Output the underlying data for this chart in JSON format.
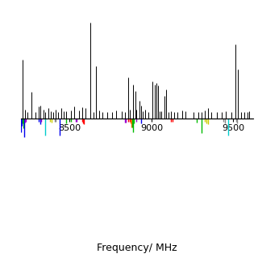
{
  "freq_min": 8200,
  "freq_max": 9620,
  "xlabel": "Frequency/ MHz",
  "background": "#ffffff",
  "upper_lines": [
    {
      "freq": 8213,
      "intensity": 0.62
    },
    {
      "freq": 8225,
      "intensity": 0.1
    },
    {
      "freq": 8240,
      "intensity": 0.07
    },
    {
      "freq": 8268,
      "intensity": 0.28
    },
    {
      "freq": 8290,
      "intensity": 0.07
    },
    {
      "freq": 8310,
      "intensity": 0.13
    },
    {
      "freq": 8322,
      "intensity": 0.14
    },
    {
      "freq": 8338,
      "intensity": 0.1
    },
    {
      "freq": 8352,
      "intensity": 0.07
    },
    {
      "freq": 8368,
      "intensity": 0.11
    },
    {
      "freq": 8382,
      "intensity": 0.08
    },
    {
      "freq": 8398,
      "intensity": 0.07
    },
    {
      "freq": 8412,
      "intensity": 0.1
    },
    {
      "freq": 8428,
      "intensity": 0.07
    },
    {
      "freq": 8448,
      "intensity": 0.11
    },
    {
      "freq": 8462,
      "intensity": 0.08
    },
    {
      "freq": 8478,
      "intensity": 0.08
    },
    {
      "freq": 8508,
      "intensity": 0.09
    },
    {
      "freq": 8528,
      "intensity": 0.13
    },
    {
      "freq": 8558,
      "intensity": 0.09
    },
    {
      "freq": 8575,
      "intensity": 0.12
    },
    {
      "freq": 8598,
      "intensity": 0.11
    },
    {
      "freq": 8628,
      "intensity": 1.0
    },
    {
      "freq": 8645,
      "intensity": 0.07
    },
    {
      "freq": 8660,
      "intensity": 0.55
    },
    {
      "freq": 8678,
      "intensity": 0.09
    },
    {
      "freq": 8698,
      "intensity": 0.07
    },
    {
      "freq": 8728,
      "intensity": 0.07
    },
    {
      "freq": 8758,
      "intensity": 0.07
    },
    {
      "freq": 8785,
      "intensity": 0.09
    },
    {
      "freq": 8818,
      "intensity": 0.08
    },
    {
      "freq": 8838,
      "intensity": 0.07
    },
    {
      "freq": 8858,
      "intensity": 0.43
    },
    {
      "freq": 8868,
      "intensity": 0.1
    },
    {
      "freq": 8888,
      "intensity": 0.36
    },
    {
      "freq": 8902,
      "intensity": 0.29
    },
    {
      "freq": 8908,
      "intensity": 0.1
    },
    {
      "freq": 8928,
      "intensity": 0.19
    },
    {
      "freq": 8938,
      "intensity": 0.14
    },
    {
      "freq": 8948,
      "intensity": 0.08
    },
    {
      "freq": 8962,
      "intensity": 0.1
    },
    {
      "freq": 8982,
      "intensity": 0.07
    },
    {
      "freq": 9008,
      "intensity": 0.39
    },
    {
      "freq": 9018,
      "intensity": 0.36
    },
    {
      "freq": 9028,
      "intensity": 0.37
    },
    {
      "freq": 9038,
      "intensity": 0.35
    },
    {
      "freq": 9048,
      "intensity": 0.08
    },
    {
      "freq": 9058,
      "intensity": 0.08
    },
    {
      "freq": 9078,
      "intensity": 0.24
    },
    {
      "freq": 9088,
      "intensity": 0.31
    },
    {
      "freq": 9102,
      "intensity": 0.07
    },
    {
      "freq": 9118,
      "intensity": 0.08
    },
    {
      "freq": 9138,
      "intensity": 0.07
    },
    {
      "freq": 9158,
      "intensity": 0.07
    },
    {
      "freq": 9188,
      "intensity": 0.09
    },
    {
      "freq": 9208,
      "intensity": 0.08
    },
    {
      "freq": 9258,
      "intensity": 0.07
    },
    {
      "freq": 9288,
      "intensity": 0.07
    },
    {
      "freq": 9308,
      "intensity": 0.07
    },
    {
      "freq": 9328,
      "intensity": 0.09
    },
    {
      "freq": 9348,
      "intensity": 0.11
    },
    {
      "freq": 9368,
      "intensity": 0.07
    },
    {
      "freq": 9398,
      "intensity": 0.07
    },
    {
      "freq": 9428,
      "intensity": 0.07
    },
    {
      "freq": 9452,
      "intensity": 0.08
    },
    {
      "freq": 9488,
      "intensity": 0.07
    },
    {
      "freq": 9512,
      "intensity": 0.78
    },
    {
      "freq": 9530,
      "intensity": 0.52
    },
    {
      "freq": 9548,
      "intensity": 0.07
    },
    {
      "freq": 9568,
      "intensity": 0.07
    },
    {
      "freq": 9588,
      "intensity": 0.07
    },
    {
      "freq": 9598,
      "intensity": 0.08
    }
  ],
  "colored_lines": [
    {
      "freq": 8203,
      "intensity": -0.3,
      "color": "#0000ee"
    },
    {
      "freq": 8207,
      "intensity": -0.16,
      "color": "#0000ee"
    },
    {
      "freq": 8213,
      "intensity": -0.1,
      "color": "#00bb00"
    },
    {
      "freq": 8218,
      "intensity": -0.22,
      "color": "#00bb00"
    },
    {
      "freq": 8222,
      "intensity": -0.42,
      "color": "#0000ee"
    },
    {
      "freq": 8228,
      "intensity": -0.08,
      "color": "#9900cc"
    },
    {
      "freq": 8233,
      "intensity": -0.07,
      "color": "#9900cc"
    },
    {
      "freq": 8312,
      "intensity": -0.07,
      "color": "#0000ee"
    },
    {
      "freq": 8318,
      "intensity": -0.13,
      "color": "#0000ee"
    },
    {
      "freq": 8324,
      "intensity": -0.07,
      "color": "#9900cc"
    },
    {
      "freq": 8352,
      "intensity": -0.38,
      "color": "#00cccc"
    },
    {
      "freq": 8378,
      "intensity": -0.07,
      "color": "#cccc00"
    },
    {
      "freq": 8388,
      "intensity": -0.09,
      "color": "#cccc00"
    },
    {
      "freq": 8408,
      "intensity": -0.07,
      "color": "#888888"
    },
    {
      "freq": 8413,
      "intensity": -0.07,
      "color": "#888888"
    },
    {
      "freq": 8438,
      "intensity": -0.38,
      "color": "#0000ee"
    },
    {
      "freq": 8478,
      "intensity": -0.1,
      "color": "#00bb00"
    },
    {
      "freq": 8508,
      "intensity": -0.07,
      "color": "#00bb00"
    },
    {
      "freq": 8538,
      "intensity": -0.07,
      "color": "#9900cc"
    },
    {
      "freq": 8543,
      "intensity": -0.07,
      "color": "#9900cc"
    },
    {
      "freq": 8578,
      "intensity": -0.07,
      "color": "#ff0000"
    },
    {
      "freq": 8583,
      "intensity": -0.1,
      "color": "#ff0000"
    },
    {
      "freq": 8588,
      "intensity": -0.13,
      "color": "#ff0000"
    },
    {
      "freq": 8838,
      "intensity": -0.09,
      "color": "#9900cc"
    },
    {
      "freq": 8843,
      "intensity": -0.09,
      "color": "#9900cc"
    },
    {
      "freq": 8858,
      "intensity": -0.07,
      "color": "#ff0000"
    },
    {
      "freq": 8866,
      "intensity": -0.07,
      "color": "#ff0000"
    },
    {
      "freq": 8873,
      "intensity": -0.1,
      "color": "#ff6600"
    },
    {
      "freq": 8878,
      "intensity": -0.2,
      "color": "#ff6600"
    },
    {
      "freq": 8883,
      "intensity": -0.2,
      "color": "#00bb00"
    },
    {
      "freq": 8888,
      "intensity": -0.3,
      "color": "#00bb00"
    },
    {
      "freq": 8893,
      "intensity": -0.1,
      "color": "#00bb00"
    },
    {
      "freq": 8908,
      "intensity": -0.07,
      "color": "#9900cc"
    },
    {
      "freq": 8938,
      "intensity": -0.1,
      "color": "#0000ee"
    },
    {
      "freq": 9118,
      "intensity": -0.07,
      "color": "#ff0000"
    },
    {
      "freq": 9128,
      "intensity": -0.07,
      "color": "#ff0000"
    },
    {
      "freq": 9278,
      "intensity": -0.09,
      "color": "#00bb00"
    },
    {
      "freq": 9308,
      "intensity": -0.32,
      "color": "#00bb00"
    },
    {
      "freq": 9328,
      "intensity": -0.07,
      "color": "#cccc00"
    },
    {
      "freq": 9338,
      "intensity": -0.1,
      "color": "#cccc00"
    },
    {
      "freq": 9348,
      "intensity": -0.13,
      "color": "#cccc00"
    },
    {
      "freq": 9438,
      "intensity": -0.07,
      "color": "#888888"
    },
    {
      "freq": 9448,
      "intensity": -0.1,
      "color": "#888888"
    },
    {
      "freq": 9468,
      "intensity": -0.38,
      "color": "#00cccc"
    },
    {
      "freq": 9518,
      "intensity": -0.07,
      "color": "#888888"
    },
    {
      "freq": 9523,
      "intensity": -0.1,
      "color": "#888888"
    }
  ],
  "xticks": [
    8500,
    9000,
    9500
  ],
  "xticklabels": [
    "8500",
    "9000",
    "9500"
  ],
  "tick_fontsize": 8,
  "xlabel_fontsize": 9
}
